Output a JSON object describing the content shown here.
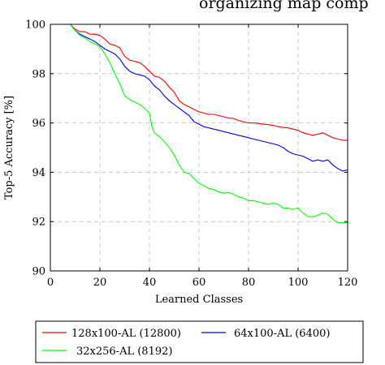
{
  "chart_data": {
    "type": "line",
    "title": "organizing map comp",
    "xlabel": "Learned Classes",
    "ylabel": "Top-5 Accuracy [%]",
    "xlim": [
      0,
      120
    ],
    "ylim": [
      90,
      100
    ],
    "xticks": [
      0,
      20,
      40,
      60,
      80,
      100,
      120
    ],
    "yticks": [
      90,
      92,
      94,
      96,
      98,
      100
    ],
    "grid": true,
    "legend_position": "below",
    "series": [
      {
        "name": "128x100-AL (12800)",
        "color": "#ff0000",
        "x": [
          1,
          5,
          8,
          10,
          12,
          14,
          16,
          18,
          20,
          22,
          24,
          26,
          28,
          30,
          32,
          34,
          36,
          38,
          40,
          42,
          44,
          46,
          48,
          50,
          52,
          54,
          56,
          58,
          60,
          62,
          64,
          66,
          68,
          70,
          72,
          74,
          76,
          78,
          80,
          82,
          84,
          86,
          88,
          90,
          92,
          94,
          96,
          98,
          100,
          102,
          104,
          106,
          108,
          110,
          112,
          114,
          116,
          118,
          120
        ],
        "y": [
          100,
          100,
          100,
          99.8,
          99.7,
          99.7,
          99.6,
          99.6,
          99.55,
          99.4,
          99.2,
          99.15,
          99.05,
          98.7,
          98.55,
          98.5,
          98.45,
          98.3,
          98.1,
          97.9,
          97.85,
          97.7,
          97.45,
          97.25,
          96.9,
          96.75,
          96.65,
          96.55,
          96.45,
          96.4,
          96.35,
          96.35,
          96.3,
          96.25,
          96.2,
          96.18,
          96.1,
          96.05,
          96.0,
          96.0,
          95.98,
          95.95,
          95.93,
          95.9,
          95.85,
          95.82,
          95.8,
          95.75,
          95.7,
          95.6,
          95.55,
          95.5,
          95.55,
          95.6,
          95.5,
          95.4,
          95.35,
          95.3,
          95.3
        ]
      },
      {
        "name": "64x100-AL (6400)",
        "color": "#0000ff",
        "x": [
          1,
          5,
          8,
          10,
          12,
          14,
          16,
          18,
          20,
          22,
          24,
          26,
          28,
          30,
          32,
          34,
          36,
          38,
          40,
          42,
          44,
          46,
          48,
          50,
          52,
          54,
          56,
          58,
          60,
          62,
          64,
          66,
          68,
          70,
          72,
          74,
          76,
          78,
          80,
          82,
          84,
          86,
          88,
          90,
          92,
          94,
          96,
          98,
          100,
          102,
          104,
          106,
          108,
          110,
          112,
          114,
          116,
          118,
          120
        ],
        "y": [
          100,
          100,
          100,
          99.75,
          99.6,
          99.5,
          99.4,
          99.3,
          99.15,
          99.0,
          98.9,
          98.8,
          98.6,
          98.3,
          98.1,
          98.0,
          97.95,
          97.9,
          97.75,
          97.5,
          97.35,
          97.1,
          96.9,
          96.75,
          96.6,
          96.45,
          96.3,
          96.05,
          95.95,
          95.85,
          95.8,
          95.75,
          95.7,
          95.65,
          95.6,
          95.55,
          95.5,
          95.45,
          95.4,
          95.35,
          95.3,
          95.25,
          95.2,
          95.15,
          95.1,
          95.0,
          94.85,
          94.75,
          94.7,
          94.65,
          94.55,
          94.45,
          94.5,
          94.45,
          94.5,
          94.3,
          94.15,
          94.05,
          94.1
        ]
      },
      {
        "name": "32x256-AL (8192)",
        "color": "#00ff00",
        "x": [
          1,
          5,
          8,
          10,
          12,
          14,
          16,
          18,
          20,
          22,
          24,
          26,
          28,
          30,
          32,
          34,
          36,
          38,
          40,
          41,
          42,
          44,
          46,
          48,
          50,
          52,
          54,
          56,
          58,
          60,
          62,
          64,
          66,
          68,
          70,
          72,
          74,
          76,
          78,
          80,
          82,
          84,
          86,
          88,
          90,
          92,
          94,
          96,
          98,
          100,
          102,
          104,
          106,
          108,
          110,
          112,
          114,
          116,
          118,
          120
        ],
        "y": [
          100,
          100,
          100,
          99.75,
          99.55,
          99.45,
          99.3,
          99.2,
          99.1,
          98.8,
          98.45,
          98.0,
          97.6,
          97.1,
          96.95,
          96.85,
          96.75,
          96.6,
          96.4,
          95.85,
          95.6,
          95.45,
          95.25,
          95.0,
          94.7,
          94.3,
          94.0,
          93.95,
          93.75,
          93.55,
          93.45,
          93.35,
          93.3,
          93.2,
          93.15,
          93.18,
          93.1,
          93.0,
          92.95,
          92.85,
          92.85,
          92.8,
          92.75,
          92.7,
          92.75,
          92.7,
          92.55,
          92.55,
          92.5,
          92.55,
          92.35,
          92.2,
          92.2,
          92.25,
          92.35,
          92.3,
          92.1,
          91.95,
          91.95,
          91.95
        ]
      }
    ]
  }
}
